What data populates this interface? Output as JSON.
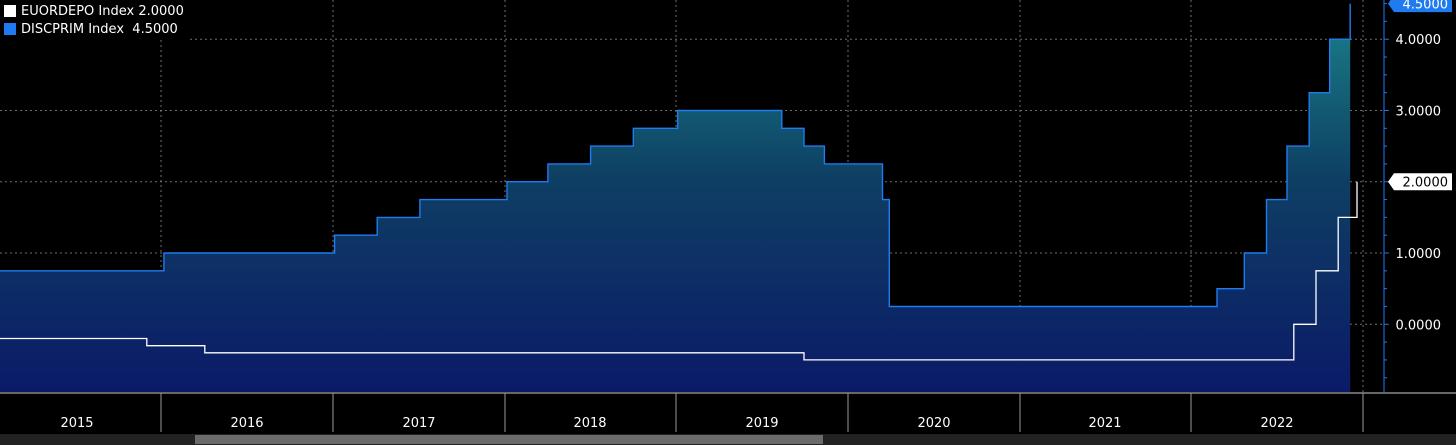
{
  "legend": {
    "items": [
      {
        "label": "EUORDEPO Index",
        "value": "2.0000",
        "color": "#ffffff"
      },
      {
        "label": "DISCPRIM Index",
        "value": "4.5000",
        "color": "#1f7bef"
      }
    ]
  },
  "chart_data": {
    "type": "line",
    "x_tick_labels": [
      "2015",
      "2016",
      "2017",
      "2018",
      "2019",
      "2020",
      "2021",
      "2022"
    ],
    "y_tick_labels": [
      "0.0000",
      "1.0000",
      "2.0000",
      "3.0000",
      "4.0000"
    ],
    "y_ticks": [
      0,
      1,
      2,
      3,
      4
    ],
    "xlim": [
      2015.0,
      2022.95
    ],
    "ylim": [
      -0.95,
      4.55
    ],
    "grid": true,
    "legend_position": "top-left",
    "series": [
      {
        "name": "DISCPRIM Index",
        "last_value_label": "4.5000",
        "color": "#1f7bef",
        "fill": "gradient-teal-to-navy",
        "points": [
          [
            2015.0,
            0.75
          ],
          [
            2015.96,
            0.75
          ],
          [
            2015.96,
            1.0
          ],
          [
            2016.96,
            1.0
          ],
          [
            2016.96,
            1.25
          ],
          [
            2017.21,
            1.25
          ],
          [
            2017.21,
            1.5
          ],
          [
            2017.46,
            1.5
          ],
          [
            2017.46,
            1.75
          ],
          [
            2017.97,
            1.75
          ],
          [
            2017.97,
            2.0
          ],
          [
            2018.21,
            2.0
          ],
          [
            2018.21,
            2.25
          ],
          [
            2018.46,
            2.25
          ],
          [
            2018.46,
            2.5
          ],
          [
            2018.71,
            2.5
          ],
          [
            2018.71,
            2.75
          ],
          [
            2018.97,
            2.75
          ],
          [
            2018.97,
            3.0
          ],
          [
            2019.58,
            3.0
          ],
          [
            2019.58,
            2.75
          ],
          [
            2019.71,
            2.75
          ],
          [
            2019.71,
            2.5
          ],
          [
            2019.83,
            2.5
          ],
          [
            2019.83,
            2.25
          ],
          [
            2020.17,
            2.25
          ],
          [
            2020.17,
            1.75
          ],
          [
            2020.21,
            1.75
          ],
          [
            2020.21,
            0.25
          ],
          [
            2022.13,
            0.25
          ],
          [
            2022.13,
            0.5
          ],
          [
            2022.29,
            0.5
          ],
          [
            2022.29,
            1.0
          ],
          [
            2022.42,
            1.0
          ],
          [
            2022.42,
            1.75
          ],
          [
            2022.54,
            1.75
          ],
          [
            2022.54,
            2.5
          ],
          [
            2022.67,
            2.5
          ],
          [
            2022.67,
            3.25
          ],
          [
            2022.79,
            3.25
          ],
          [
            2022.79,
            4.0
          ],
          [
            2022.91,
            4.0
          ],
          [
            2022.91,
            4.5
          ]
        ]
      },
      {
        "name": "EUORDEPO Index",
        "last_value_label": "2.0000",
        "color": "#ffffff",
        "points": [
          [
            2015.0,
            -0.2
          ],
          [
            2015.86,
            -0.2
          ],
          [
            2015.86,
            -0.3
          ],
          [
            2016.2,
            -0.3
          ],
          [
            2016.2,
            -0.4
          ],
          [
            2019.71,
            -0.4
          ],
          [
            2019.71,
            -0.5
          ],
          [
            2022.58,
            -0.5
          ],
          [
            2022.58,
            0.0
          ],
          [
            2022.71,
            0.0
          ],
          [
            2022.71,
            0.75
          ],
          [
            2022.84,
            0.75
          ],
          [
            2022.84,
            1.5
          ],
          [
            2022.95,
            1.5
          ],
          [
            2022.95,
            2.0
          ]
        ]
      }
    ]
  }
}
